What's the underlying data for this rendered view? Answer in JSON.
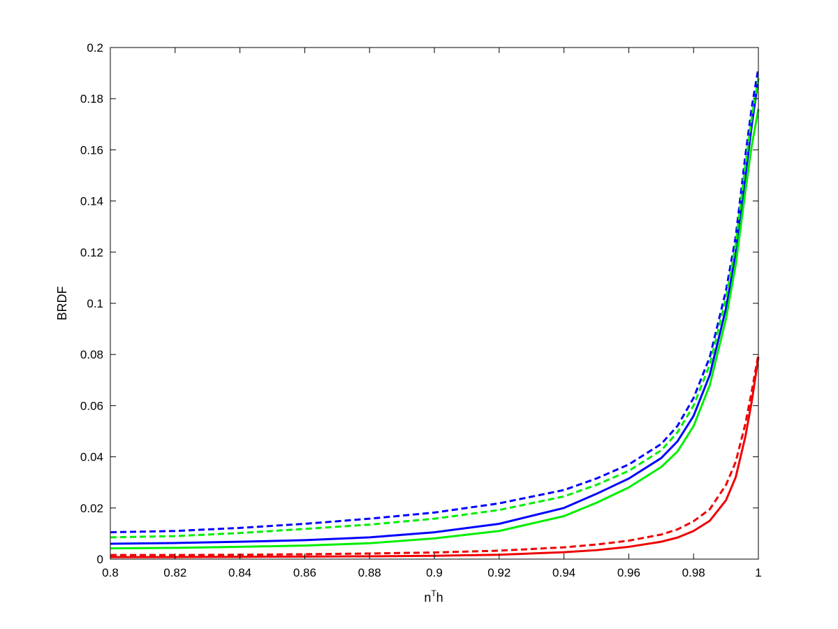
{
  "chart_data": {
    "type": "line",
    "title": "",
    "xlabel": {
      "base": "n",
      "superscript": "T",
      "suffix": "h"
    },
    "ylabel": "BRDF",
    "xlim": [
      0.8,
      1.0
    ],
    "ylim": [
      0,
      0.2
    ],
    "xticks": [
      0.8,
      0.82,
      0.84,
      0.86,
      0.88,
      0.9,
      0.92,
      0.94,
      0.96,
      0.98,
      1.0
    ],
    "xtick_labels": [
      "0.8",
      "0.82",
      "0.84",
      "0.86",
      "0.88",
      "0.9",
      "0.92",
      "0.94",
      "0.96",
      "0.98",
      "1"
    ],
    "yticks": [
      0,
      0.02,
      0.04,
      0.06,
      0.08,
      0.1,
      0.12,
      0.14,
      0.16,
      0.18,
      0.2
    ],
    "ytick_labels": [
      "0",
      "0.02",
      "0.04",
      "0.06",
      "0.08",
      "0.1",
      "0.12",
      "0.14",
      "0.16",
      "0.18",
      "0.2"
    ],
    "grid": false,
    "legend": "none",
    "x": [
      0.8,
      0.82,
      0.84,
      0.86,
      0.88,
      0.9,
      0.92,
      0.94,
      0.95,
      0.96,
      0.97,
      0.975,
      0.98,
      0.985,
      0.99,
      0.993,
      0.996,
      0.998,
      1.0
    ],
    "series": [
      {
        "color": "#0000ff",
        "dash": "solid",
        "values": [
          0.006,
          0.0063,
          0.0068,
          0.0074,
          0.0085,
          0.0105,
          0.0138,
          0.02,
          0.0255,
          0.0315,
          0.0395,
          0.046,
          0.056,
          0.072,
          0.098,
          0.12,
          0.15,
          0.17,
          0.188
        ]
      },
      {
        "color": "#0000ff",
        "dash": "dashed",
        "values": [
          0.0105,
          0.011,
          0.0122,
          0.0138,
          0.0158,
          0.0182,
          0.0218,
          0.027,
          0.0315,
          0.037,
          0.045,
          0.052,
          0.063,
          0.079,
          0.105,
          0.126,
          0.158,
          0.177,
          0.192
        ]
      },
      {
        "color": "#00ee00",
        "dash": "solid",
        "values": [
          0.0042,
          0.0044,
          0.0048,
          0.0053,
          0.0062,
          0.0081,
          0.011,
          0.0168,
          0.022,
          0.028,
          0.036,
          0.042,
          0.052,
          0.068,
          0.094,
          0.115,
          0.144,
          0.162,
          0.176
        ]
      },
      {
        "color": "#00ee00",
        "dash": "dashed",
        "values": [
          0.0085,
          0.009,
          0.0102,
          0.0118,
          0.0135,
          0.0158,
          0.0192,
          0.0245,
          0.029,
          0.0345,
          0.0425,
          0.0495,
          0.06,
          0.076,
          0.102,
          0.123,
          0.154,
          0.173,
          0.188
        ]
      },
      {
        "color": "#ee0000",
        "dash": "solid",
        "values": [
          0.0008,
          0.0008,
          0.0009,
          0.001,
          0.0011,
          0.0013,
          0.0017,
          0.0027,
          0.0035,
          0.0048,
          0.0068,
          0.0084,
          0.011,
          0.015,
          0.023,
          0.032,
          0.048,
          0.062,
          0.079
        ]
      },
      {
        "color": "#ee0000",
        "dash": "dashed",
        "values": [
          0.0016,
          0.0016,
          0.0017,
          0.0019,
          0.0022,
          0.0026,
          0.0033,
          0.0046,
          0.0057,
          0.0072,
          0.0096,
          0.0116,
          0.0148,
          0.0195,
          0.029,
          0.038,
          0.053,
          0.066,
          0.08
        ]
      }
    ]
  }
}
